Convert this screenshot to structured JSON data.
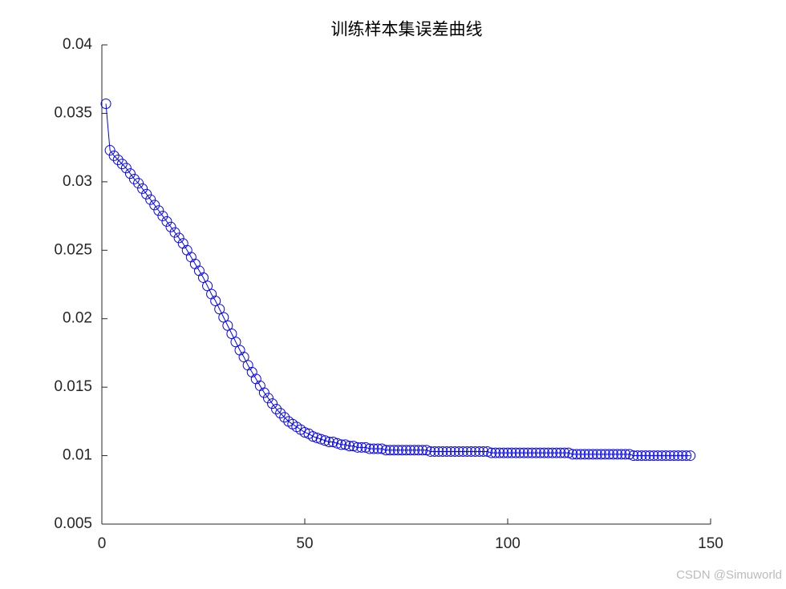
{
  "chart_data": {
    "type": "line",
    "title": "训练样本集误差曲线",
    "x": [
      1,
      2,
      3,
      4,
      5,
      6,
      7,
      8,
      9,
      10,
      11,
      12,
      13,
      14,
      15,
      16,
      17,
      18,
      19,
      20,
      21,
      22,
      23,
      24,
      25,
      26,
      27,
      28,
      29,
      30,
      31,
      32,
      33,
      34,
      35,
      36,
      37,
      38,
      39,
      40,
      41,
      42,
      43,
      44,
      45,
      46,
      47,
      48,
      49,
      50,
      51,
      52,
      53,
      54,
      55,
      56,
      57,
      58,
      59,
      60,
      61,
      62,
      63,
      64,
      65,
      66,
      67,
      68,
      69,
      70,
      71,
      72,
      73,
      74,
      75,
      76,
      77,
      78,
      79,
      80,
      81,
      82,
      83,
      84,
      85,
      86,
      87,
      88,
      89,
      90,
      91,
      92,
      93,
      94,
      95,
      96,
      97,
      98,
      99,
      100,
      101,
      102,
      103,
      104,
      105,
      106,
      107,
      108,
      109,
      110,
      111,
      112,
      113,
      114,
      115,
      116,
      117,
      118,
      119,
      120,
      121,
      122,
      123,
      124,
      125,
      126,
      127,
      128,
      129,
      130,
      131,
      132,
      133,
      134,
      135,
      136,
      137,
      138,
      139,
      140,
      141,
      142,
      143,
      144,
      145
    ],
    "series": [
      {
        "color": "#0000ff",
        "marker": "circle",
        "values": [
          0.0357,
          0.0323,
          0.0319,
          0.0316,
          0.0313,
          0.031,
          0.0306,
          0.0302,
          0.0299,
          0.0295,
          0.0291,
          0.0287,
          0.0283,
          0.0279,
          0.0275,
          0.0271,
          0.0267,
          0.0263,
          0.0259,
          0.0255,
          0.025,
          0.0245,
          0.024,
          0.0235,
          0.023,
          0.0224,
          0.0218,
          0.0213,
          0.0207,
          0.0201,
          0.0195,
          0.0189,
          0.0183,
          0.0177,
          0.0172,
          0.0166,
          0.0161,
          0.0156,
          0.0151,
          0.0146,
          0.0142,
          0.0138,
          0.0134,
          0.0131,
          0.0128,
          0.0125,
          0.0123,
          0.0121,
          0.0119,
          0.0117,
          0.0116,
          0.0114,
          0.0113,
          0.0112,
          0.0111,
          0.011,
          0.011,
          0.0109,
          0.0108,
          0.0108,
          0.0107,
          0.0107,
          0.0106,
          0.0106,
          0.0106,
          0.0105,
          0.0105,
          0.0105,
          0.0105,
          0.0104,
          0.0104,
          0.0104,
          0.0104,
          0.0104,
          0.0104,
          0.0104,
          0.0104,
          0.0104,
          0.0104,
          0.0104,
          0.0103,
          0.0103,
          0.0103,
          0.0103,
          0.0103,
          0.0103,
          0.0103,
          0.0103,
          0.0103,
          0.0103,
          0.0103,
          0.0103,
          0.0103,
          0.0103,
          0.0103,
          0.0102,
          0.0102,
          0.0102,
          0.0102,
          0.0102,
          0.0102,
          0.0102,
          0.0102,
          0.0102,
          0.0102,
          0.0102,
          0.0102,
          0.0102,
          0.0102,
          0.0102,
          0.0102,
          0.0102,
          0.0102,
          0.0102,
          0.0102,
          0.0101,
          0.0101,
          0.0101,
          0.0101,
          0.0101,
          0.0101,
          0.0101,
          0.0101,
          0.0101,
          0.0101,
          0.0101,
          0.0101,
          0.0101,
          0.0101,
          0.0101,
          0.01,
          0.01,
          0.01,
          0.01,
          0.01,
          0.01,
          0.01,
          0.01,
          0.01,
          0.01,
          0.01,
          0.01,
          0.01,
          0.01,
          0.01
        ]
      }
    ],
    "xlim": [
      0,
      150
    ],
    "xticks": [
      0,
      50,
      100,
      150
    ],
    "ylim": [
      0.005,
      0.04
    ],
    "yticks": [
      0.005,
      0.01,
      0.015,
      0.02,
      0.025,
      0.03,
      0.035,
      0.04
    ],
    "grid": false,
    "watermark": "CSDN @Simuworld"
  }
}
